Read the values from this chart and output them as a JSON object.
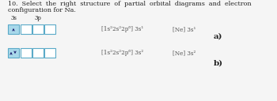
{
  "title_line1": "10.  Select  the  right  structure  of  partial  orbital  diagrams  and  electron",
  "title_line2": "configuration for Na.",
  "bg_color": "#f5f5f5",
  "text_color": "#222222",
  "box_fill": "#a8d8ea",
  "box_edge": "#5aaac8",
  "arrow_color": "#1a1a6e",
  "row_a": {
    "label_3s": "3s",
    "label_3p": "3p",
    "config1": "[1s²2s²2p⁶] 3s¹",
    "config2": "[Ne] 3s¹",
    "answer": "a)"
  },
  "row_b": {
    "config1": "[1s²2s²2p⁶] 3s²",
    "config2": "[Ne] 3s²",
    "answer": "b)"
  }
}
